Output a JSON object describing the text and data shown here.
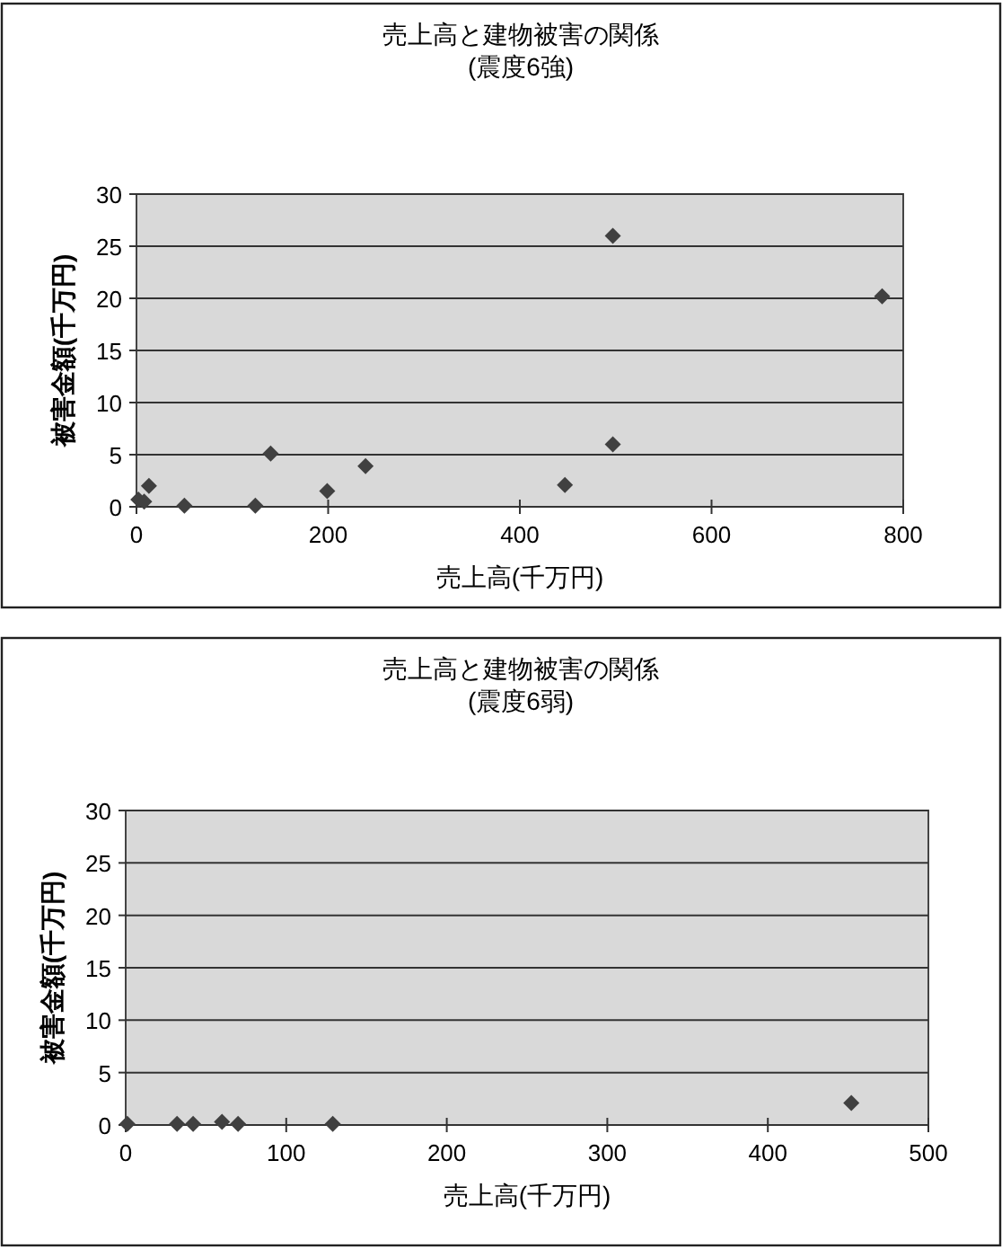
{
  "chart_data": [
    {
      "type": "scatter",
      "title": "売上高と建物被害の関係",
      "subtitle": "(震度6強)",
      "xlabel": "売上高(千万円)",
      "ylabel": "被害金額(千万円)",
      "marker": "diamond",
      "grid": "y",
      "xlim": [
        0,
        800
      ],
      "xticks": [
        0,
        200,
        400,
        600,
        800
      ],
      "ylim": [
        0,
        30
      ],
      "yticks": [
        0,
        5,
        10,
        15,
        20,
        25,
        30
      ],
      "series": [
        {
          "color": "#404040",
          "x": [
            2,
            8,
            13,
            50,
            124,
            140,
            199,
            239,
            447,
            497,
            497,
            778
          ],
          "values": [
            0.7,
            0.5,
            2,
            0.1,
            0.1,
            5.1,
            1.5,
            3.9,
            2.1,
            26,
            6,
            20.2
          ]
        }
      ]
    },
    {
      "type": "scatter",
      "title": "売上高と建物被害の関係",
      "subtitle": "(震度6弱)",
      "xlabel": "売上高(千万円)",
      "ylabel": "被害金額(千万円)",
      "marker": "diamond",
      "grid": "y",
      "xlim": [
        0,
        500
      ],
      "xticks": [
        0,
        100,
        200,
        300,
        400,
        500
      ],
      "ylim": [
        0,
        30
      ],
      "yticks": [
        0,
        5,
        10,
        15,
        20,
        25,
        30
      ],
      "series": [
        {
          "color": "#404040",
          "x": [
            1,
            32,
            42,
            60,
            70,
            129,
            452
          ],
          "values": [
            0.1,
            0.1,
            0.1,
            0.3,
            0.1,
            0.1,
            2.1
          ]
        }
      ]
    }
  ]
}
